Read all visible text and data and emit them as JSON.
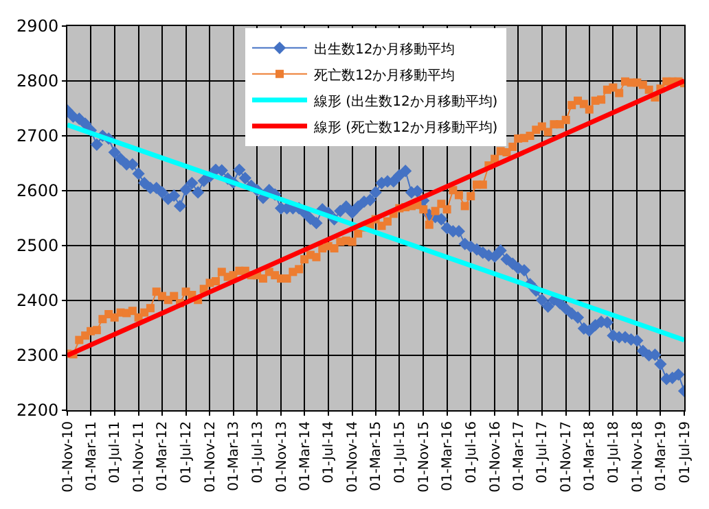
{
  "chart_data": {
    "type": "line",
    "x": [
      "2010-11",
      "2010-12",
      "2011-01",
      "2011-02",
      "2011-03",
      "2011-04",
      "2011-05",
      "2011-06",
      "2011-07",
      "2011-08",
      "2011-09",
      "2011-10",
      "2011-11",
      "2011-12",
      "2012-01",
      "2012-02",
      "2012-03",
      "2012-04",
      "2012-05",
      "2012-06",
      "2012-07",
      "2012-08",
      "2012-09",
      "2012-10",
      "2012-11",
      "2012-12",
      "2013-01",
      "2013-02",
      "2013-03",
      "2013-04",
      "2013-05",
      "2013-06",
      "2013-07",
      "2013-08",
      "2013-09",
      "2013-10",
      "2013-11",
      "2013-12",
      "2014-01",
      "2014-02",
      "2014-03",
      "2014-04",
      "2014-05",
      "2014-06",
      "2014-07",
      "2014-08",
      "2014-09",
      "2014-10",
      "2014-11",
      "2014-12",
      "2015-01",
      "2015-02",
      "2015-03",
      "2015-04",
      "2015-05",
      "2015-06",
      "2015-07",
      "2015-08",
      "2015-09",
      "2015-10",
      "2015-11",
      "2015-12",
      "2016-01",
      "2016-02",
      "2016-03",
      "2016-04",
      "2016-05",
      "2016-06",
      "2016-07",
      "2016-08",
      "2016-09",
      "2016-10",
      "2016-11",
      "2016-12",
      "2017-01",
      "2017-02",
      "2017-03",
      "2017-04",
      "2017-05",
      "2017-06",
      "2017-07",
      "2017-08",
      "2017-09",
      "2017-10",
      "2017-11",
      "2017-12",
      "2018-01",
      "2018-02",
      "2018-03",
      "2018-04",
      "2018-05",
      "2018-06",
      "2018-07",
      "2018-08",
      "2018-09",
      "2018-10",
      "2018-11",
      "2018-12",
      "2019-01",
      "2019-02",
      "2019-03",
      "2019-04",
      "2019-05",
      "2019-06",
      "2019-07"
    ],
    "series": [
      {
        "name": "出生数12か月移動平均",
        "color": "#4472c4",
        "marker": "diamond",
        "values": [
          2746,
          2735,
          2731,
          2722,
          2710,
          2684,
          2700,
          2695,
          2670,
          2658,
          2648,
          2648,
          2631,
          2614,
          2605,
          2605,
          2597,
          2585,
          2591,
          2572,
          2602,
          2614,
          2597,
          2618,
          2626,
          2638,
          2637,
          2622,
          2615,
          2638,
          2623,
          2609,
          2601,
          2587,
          2601,
          2593,
          2568,
          2568,
          2568,
          2568,
          2560,
          2549,
          2541,
          2566,
          2560,
          2548,
          2563,
          2571,
          2560,
          2571,
          2580,
          2583,
          2597,
          2614,
          2617,
          2617,
          2628,
          2636,
          2597,
          2599,
          2582,
          2556,
          2552,
          2548,
          2532,
          2526,
          2526,
          2503,
          2498,
          2493,
          2487,
          2482,
          2480,
          2491,
          2475,
          2467,
          2459,
          2455,
          2430,
          2418,
          2401,
          2389,
          2401,
          2395,
          2385,
          2376,
          2369,
          2349,
          2345,
          2355,
          2361,
          2360,
          2336,
          2333,
          2333,
          2329,
          2327,
          2308,
          2300,
          2301,
          2284,
          2257,
          2259,
          2265,
          2235
        ]
      },
      {
        "name": "死亡数12か月移動平均",
        "color": "#ed7d31",
        "marker": "square",
        "values": [
          2303,
          2302,
          2328,
          2336,
          2344,
          2346,
          2366,
          2375,
          2369,
          2378,
          2377,
          2381,
          2369,
          2378,
          2386,
          2416,
          2408,
          2401,
          2408,
          2395,
          2416,
          2410,
          2401,
          2421,
          2432,
          2435,
          2452,
          2443,
          2446,
          2454,
          2454,
          2446,
          2446,
          2440,
          2452,
          2446,
          2440,
          2440,
          2452,
          2457,
          2475,
          2483,
          2479,
          2495,
          2499,
          2495,
          2507,
          2509,
          2507,
          2522,
          2533,
          2538,
          2548,
          2536,
          2544,
          2558,
          2568,
          2570,
          2572,
          2574,
          2566,
          2538,
          2563,
          2576,
          2566,
          2601,
          2592,
          2572,
          2590,
          2611,
          2611,
          2646,
          2658,
          2672,
          2670,
          2680,
          2695,
          2696,
          2700,
          2711,
          2717,
          2707,
          2721,
          2721,
          2729,
          2756,
          2764,
          2758,
          2748,
          2764,
          2766,
          2784,
          2788,
          2778,
          2799,
          2797,
          2797,
          2793,
          2784,
          2770,
          2786,
          2799,
          2799,
          2799,
          2796
        ]
      },
      {
        "name": "線形 (出生数12か月移動平均)",
        "color": "#00ffff",
        "marker": "none",
        "x": [
          "2010-11",
          "2019-07"
        ],
        "values": [
          2720,
          2328
        ]
      },
      {
        "name": "線形 (死亡数12か月移動平均)",
        "color": "#ff0000",
        "marker": "none",
        "x": [
          "2010-11",
          "2019-07"
        ],
        "values": [
          2300,
          2800
        ]
      }
    ],
    "xlim": [
      "2010-11-01",
      "2019-07-01"
    ],
    "xticks": [
      {
        "value": "2010-11",
        "label": "01-Nov-10"
      },
      {
        "value": "2011-03",
        "label": "01-Mar-11"
      },
      {
        "value": "2011-07",
        "label": "01-Jul-11"
      },
      {
        "value": "2011-11",
        "label": "01-Nov-11"
      },
      {
        "value": "2012-03",
        "label": "01-Mar-12"
      },
      {
        "value": "2012-07",
        "label": "01-Jul-12"
      },
      {
        "value": "2012-11",
        "label": "01-Nov-12"
      },
      {
        "value": "2013-03",
        "label": "01-Mar-13"
      },
      {
        "value": "2013-07",
        "label": "01-Jul-13"
      },
      {
        "value": "2013-11",
        "label": "01-Nov-13"
      },
      {
        "value": "2014-03",
        "label": "01-Mar-14"
      },
      {
        "value": "2014-07",
        "label": "01-Jul-14"
      },
      {
        "value": "2014-11",
        "label": "01-Nov-14"
      },
      {
        "value": "2015-03",
        "label": "01-Mar-15"
      },
      {
        "value": "2015-07",
        "label": "01-Jul-15"
      },
      {
        "value": "2015-11",
        "label": "01-Nov-15"
      },
      {
        "value": "2016-03",
        "label": "01-Mar-16"
      },
      {
        "value": "2016-07",
        "label": "01-Jul-16"
      },
      {
        "value": "2016-11",
        "label": "01-Nov-16"
      },
      {
        "value": "2017-03",
        "label": "01-Mar-17"
      },
      {
        "value": "2017-07",
        "label": "01-Jul-17"
      },
      {
        "value": "2017-11",
        "label": "01-Nov-17"
      },
      {
        "value": "2018-03",
        "label": "01-Mar-18"
      },
      {
        "value": "2018-07",
        "label": "01-Jul-18"
      },
      {
        "value": "2018-11",
        "label": "01-Nov-18"
      },
      {
        "value": "2019-03",
        "label": "01-Mar-19"
      },
      {
        "value": "2019-07",
        "label": "01-Jul-19"
      }
    ],
    "ylim": [
      2200,
      2900
    ],
    "yticks": [
      2200,
      2300,
      2400,
      2500,
      2600,
      2700,
      2800,
      2900
    ],
    "grid": true,
    "legend": "top"
  }
}
